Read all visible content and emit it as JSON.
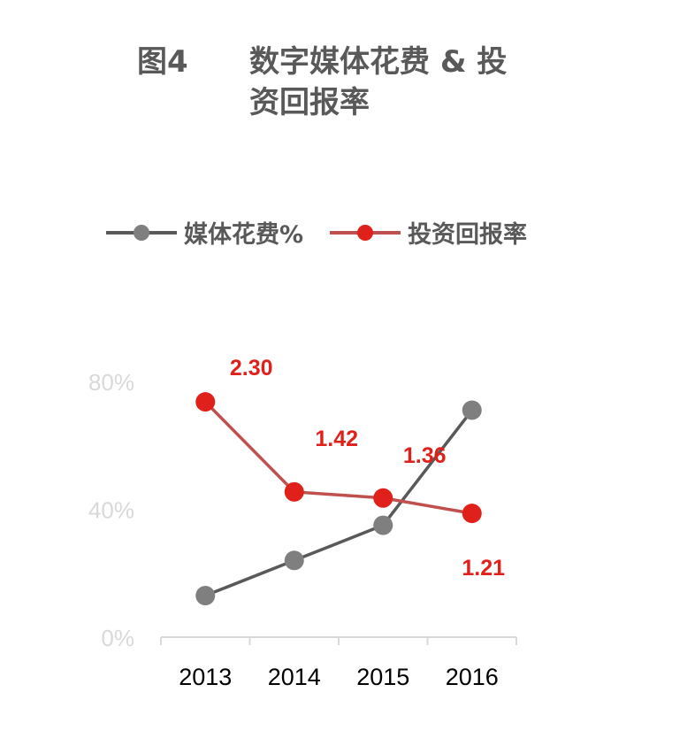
{
  "title": {
    "figure_no": "图4",
    "line1": "数字媒体花费 & 投",
    "line2": "资回报率"
  },
  "chart_data": {
    "type": "line",
    "title": "图4 数字媒体花费 & 投资回报率",
    "categories": [
      "2013",
      "2014",
      "2015",
      "2016"
    ],
    "y_ticks": [
      "0%",
      "40%",
      "80%"
    ],
    "ylim": [
      0,
      80
    ],
    "secondary_ylim": [
      0,
      2.5
    ],
    "legend_position": "top",
    "grid": false,
    "series": [
      {
        "name": "媒体花费%",
        "color": "#7f7f7f",
        "line_color": "#595959",
        "axis": "primary",
        "values": [
          13,
          24,
          35,
          71
        ],
        "labels": null
      },
      {
        "name": "投资回报率",
        "color": "#e0201b",
        "line_color": "#c0504d",
        "axis": "secondary",
        "values": [
          2.3,
          1.42,
          1.36,
          1.21
        ],
        "labels": [
          "2.30",
          "1.42",
          "1.36",
          "1.21"
        ]
      }
    ]
  }
}
